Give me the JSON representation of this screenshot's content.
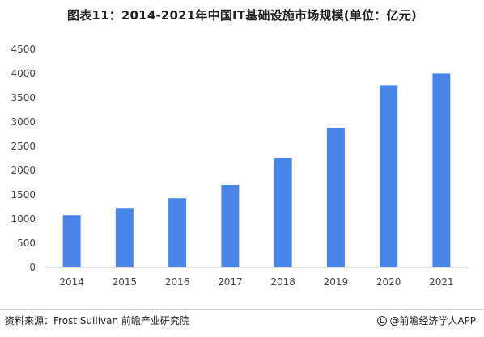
{
  "title": "图表11：2014-2021年中国IT基础设施市场规模(单位：亿元)",
  "footer": {
    "source": "资料来源：Frost Sullivan 前瞻产业研究院",
    "brand": "@前瞻经济学人APP",
    "brand_icon": "brand-logo-icon"
  },
  "chart_data": {
    "type": "bar",
    "categories": [
      "2014",
      "2015",
      "2016",
      "2017",
      "2018",
      "2019",
      "2020",
      "2021"
    ],
    "values": [
      1080,
      1230,
      1430,
      1700,
      2260,
      2880,
      3760,
      4010
    ],
    "ylim": [
      0,
      4500
    ],
    "yticks": [
      0,
      500,
      1000,
      1500,
      2000,
      2500,
      3000,
      3500,
      4000,
      4500
    ],
    "grid": false,
    "bar_color": "#4a86e8",
    "axis_color": "#bfbfbf"
  }
}
